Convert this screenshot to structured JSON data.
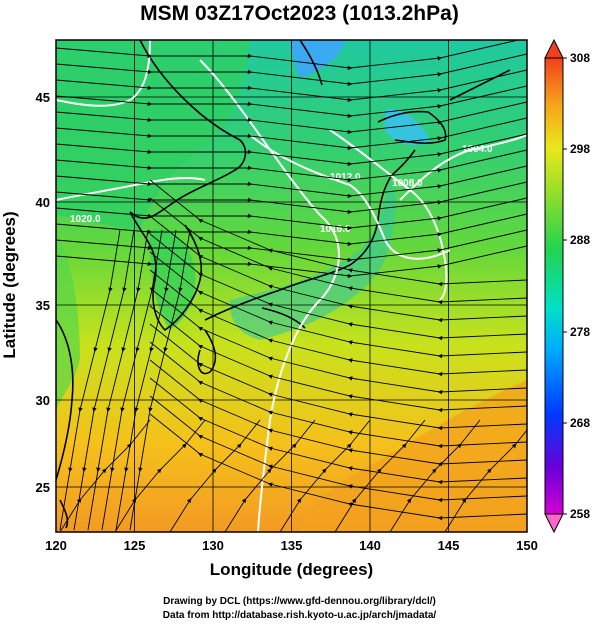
{
  "title": "MSM 03Z17Oct2023 (1013.2hPa)",
  "xlabel": "Longitude (degrees)",
  "ylabel": "Latitude  (degrees)",
  "xticks": [
    "120",
    "125",
    "130",
    "135",
    "140",
    "145",
    "150"
  ],
  "yticks": [
    "25",
    "30",
    "35",
    "40",
    "45"
  ],
  "colorbar": {
    "min": 258,
    "max": 308,
    "ticks": [
      "308",
      "298",
      "288",
      "278",
      "268",
      "258"
    ]
  },
  "contours": [
    "1004.0",
    "1008.0",
    "1012.0",
    "1016.0",
    "1020.0"
  ],
  "credits": {
    "line1": "Drawing by DCL (https://www.gfd-dennou.org/library/dcl/)",
    "line2": "Data from http://database.rish.kyoto-u.ac.jp/arch/jmadata/"
  },
  "colors": {
    "warm": "#f5a51e",
    "cool": "#31d27a",
    "cold": "#1fa7ee",
    "contour": "#ffffff"
  }
}
